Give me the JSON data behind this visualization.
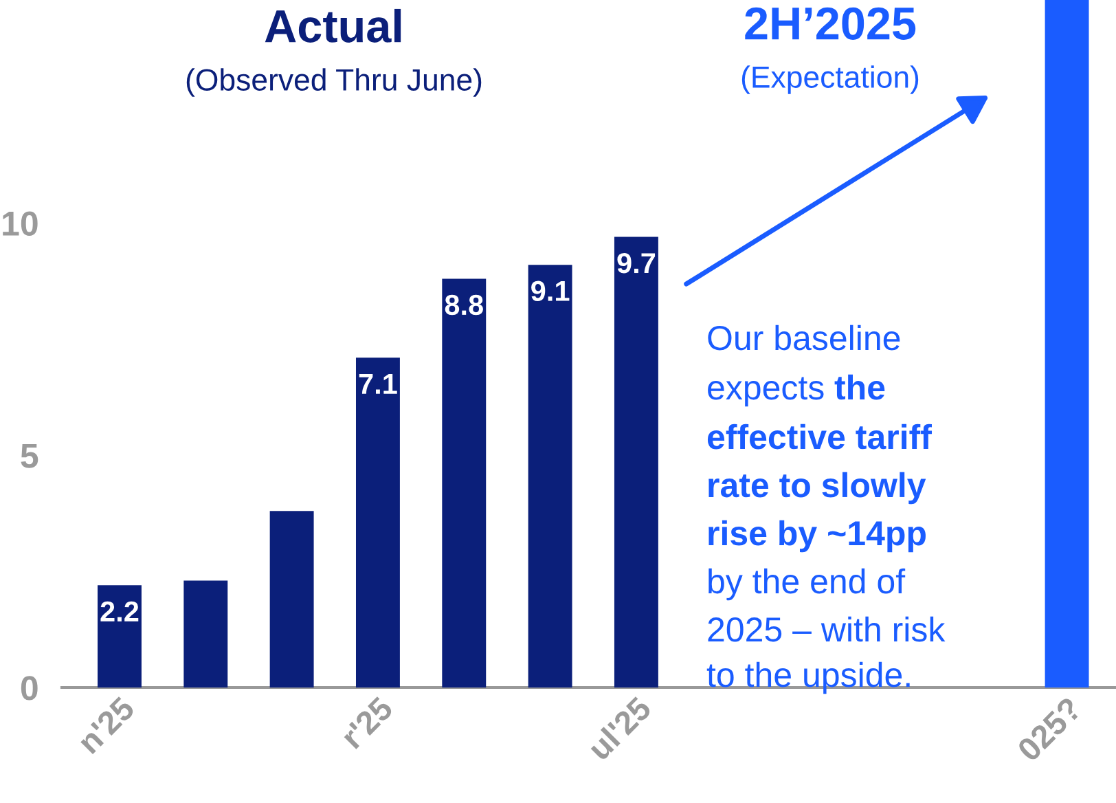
{
  "chart_data": {
    "type": "bar",
    "categories": [
      "n'25",
      null,
      null,
      "r'25",
      null,
      null,
      "ul'25",
      null,
      null,
      null,
      null,
      "025?"
    ],
    "values": [
      2.2,
      2.3,
      3.8,
      7.1,
      8.8,
      9.1,
      9.7,
      null,
      null,
      null,
      null,
      14.8
    ],
    "colors": [
      "#0b1f7a",
      "#0b1f7a",
      "#0b1f7a",
      "#0b1f7a",
      "#0b1f7a",
      "#0b1f7a",
      "#0b1f7a",
      "#0b1f7a",
      "#0b1f7a",
      "#0b1f7a",
      "#0b1f7a",
      "#1a5cff"
    ],
    "value_labels": [
      "2.2",
      null,
      null,
      "7.1",
      "8.8",
      "9.1",
      "9.7",
      null,
      null,
      null,
      null,
      null
    ],
    "ylim": [
      0,
      14.8
    ],
    "yticks": [
      0,
      5,
      10
    ],
    "grid": false,
    "legend": false,
    "annotations": [
      "Actual",
      "(Observed Thru June)",
      "2H’2025",
      "(Expectation)",
      "Our baseline",
      "expects ",
      "the",
      "effective tariff",
      "rate to slowly",
      "rise by ~14pp",
      "by the end of",
      "2025 – with risk",
      "to the upside."
    ]
  }
}
